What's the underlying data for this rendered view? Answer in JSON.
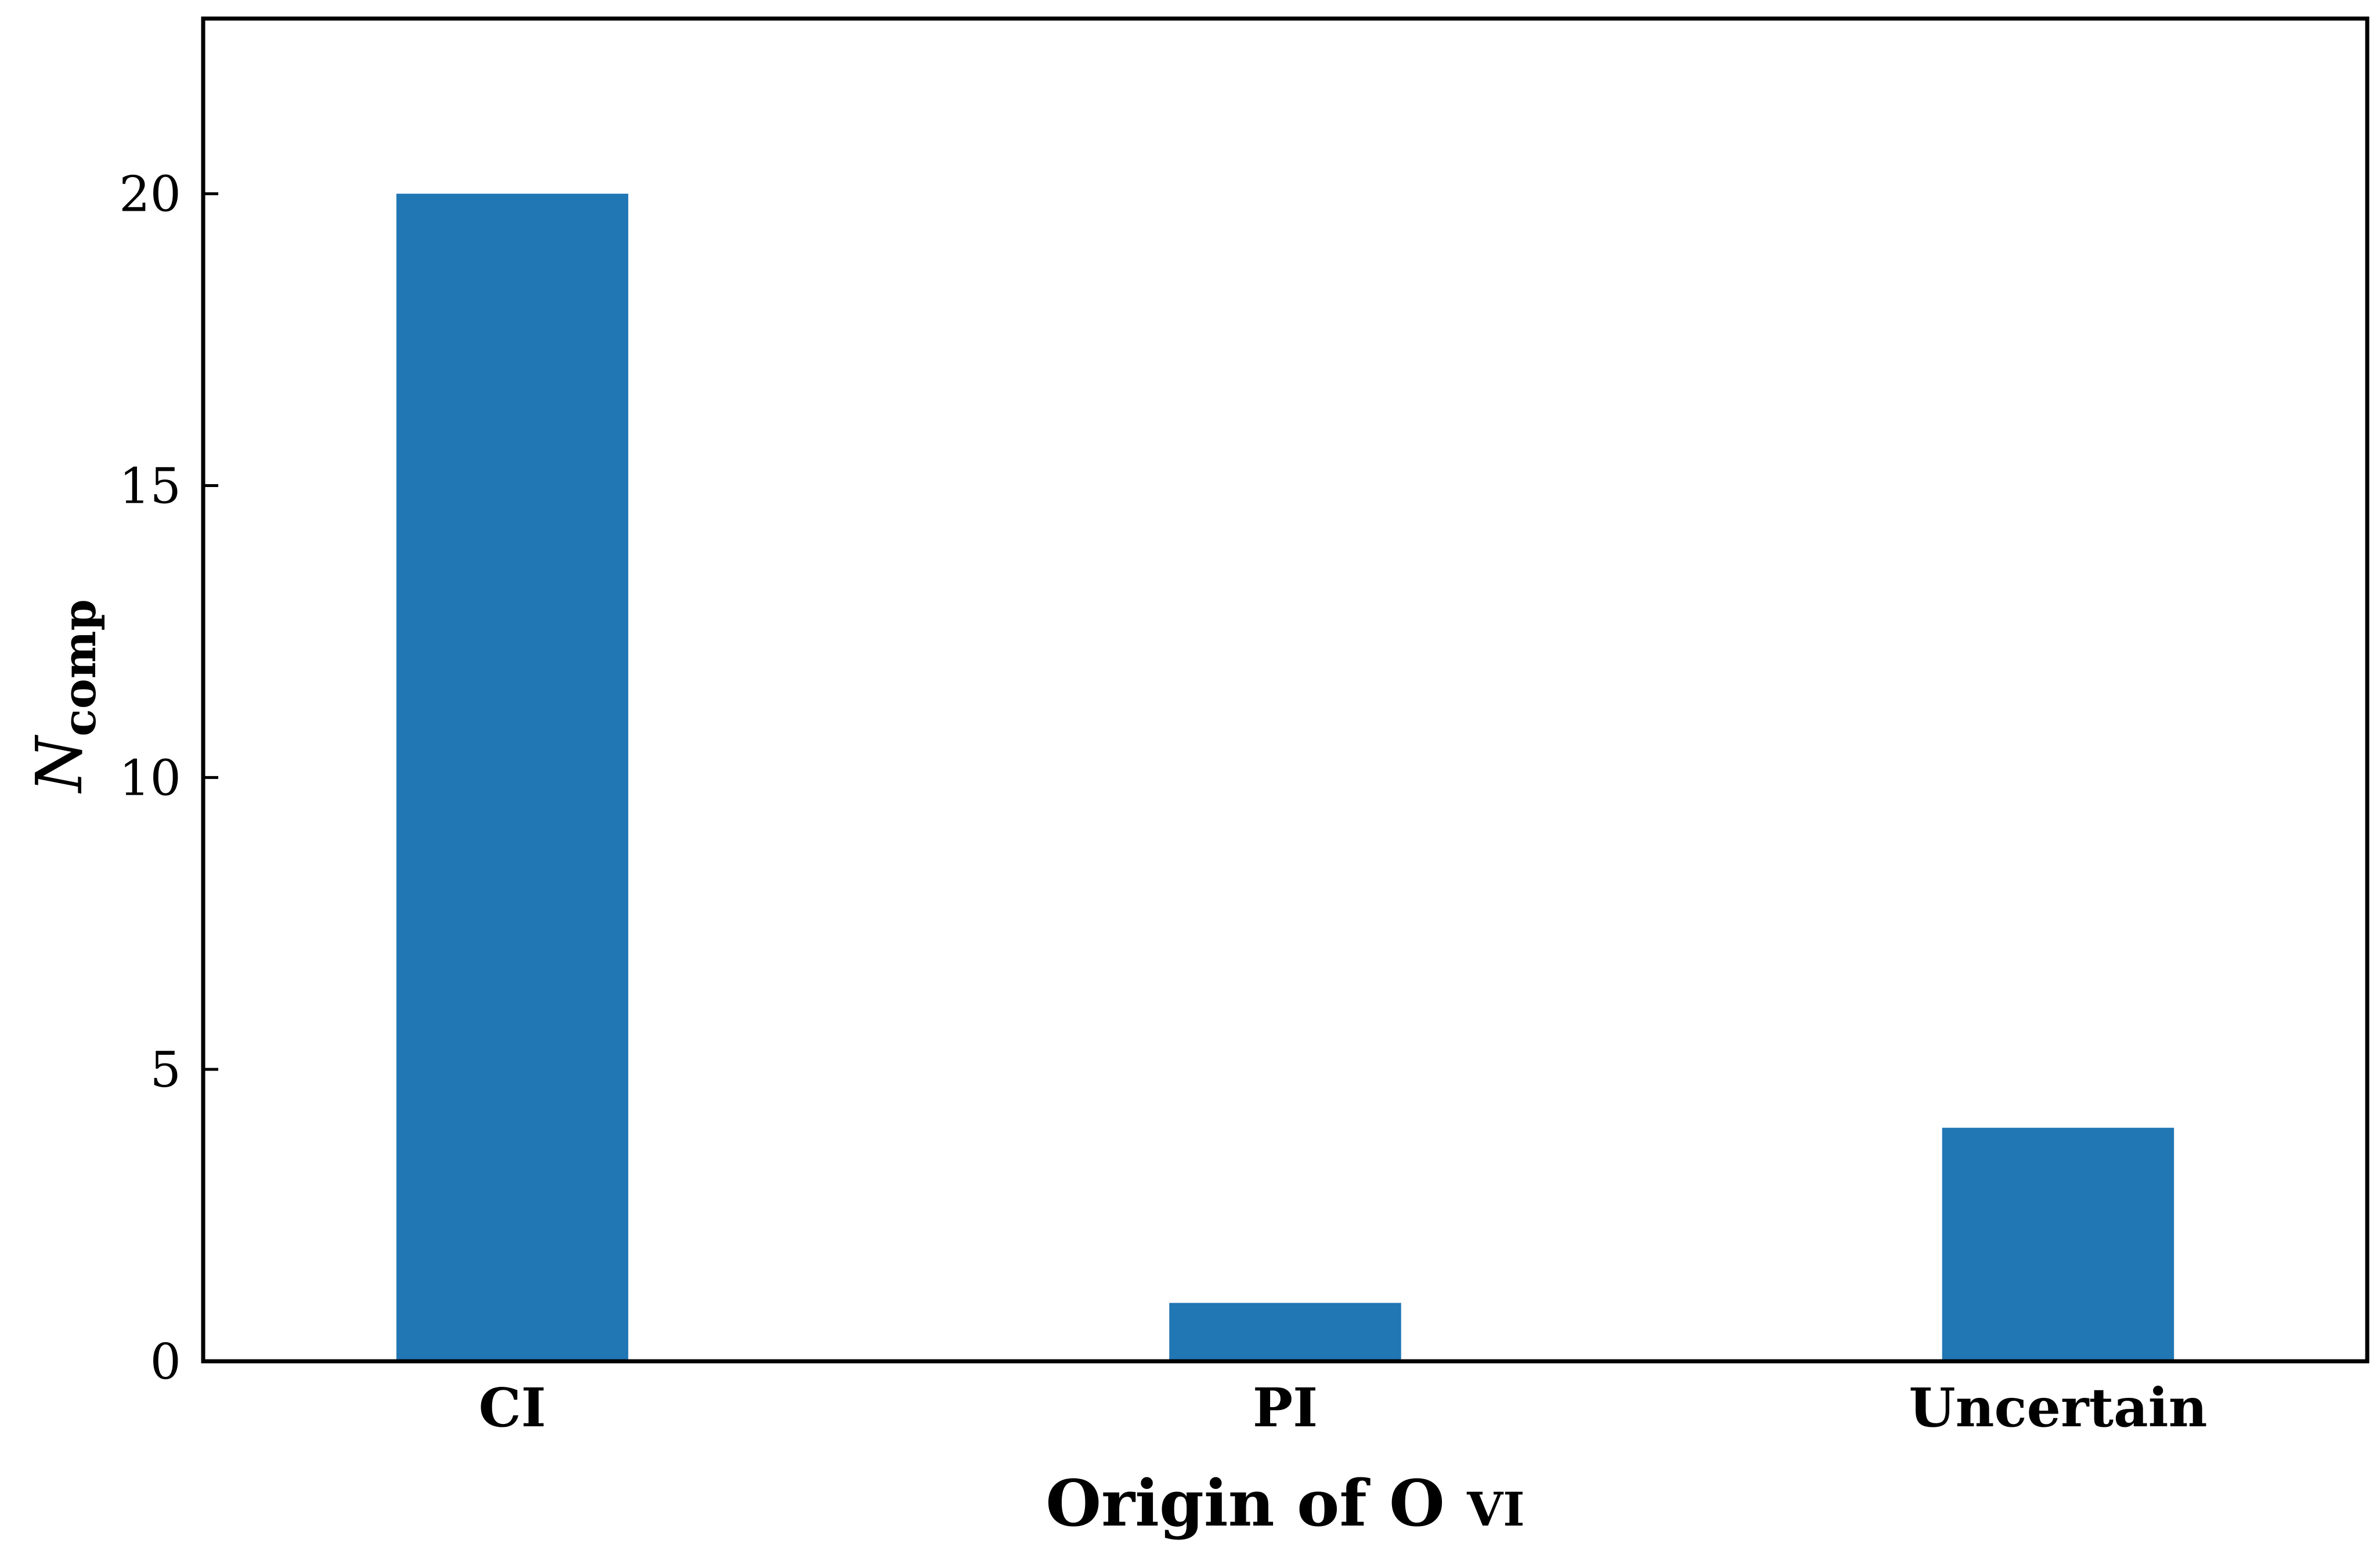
{
  "chart_data": {
    "type": "bar",
    "categories": [
      "CI",
      "PI",
      "Uncertain"
    ],
    "values": [
      20,
      1,
      4
    ],
    "xlabel": "Origin of O vi",
    "xlabel_parts": {
      "main": "Origin of O ",
      "ion": "VI"
    },
    "ylabel": "Ncomp",
    "ylabel_parts": {
      "main": "N",
      "sub": "comp"
    },
    "ylim": [
      0,
      23
    ],
    "yticks": [
      0,
      5,
      10,
      15,
      20
    ],
    "grid": false,
    "legend": false,
    "bar_color": "#2176b4"
  }
}
